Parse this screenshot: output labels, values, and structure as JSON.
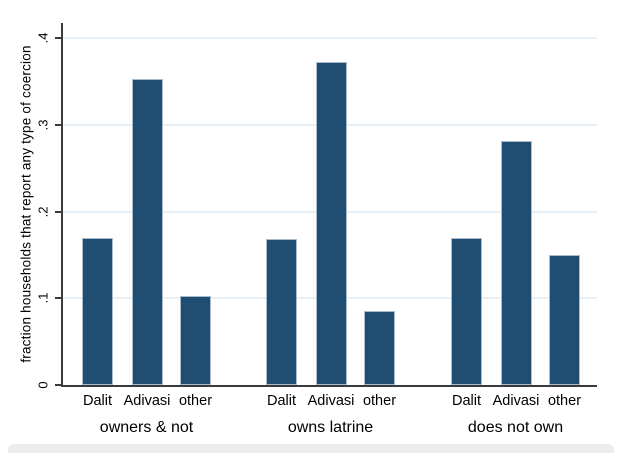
{
  "chart_data": {
    "type": "bar",
    "title": "",
    "xlabel": "",
    "ylabel": "fraction households that report any type of coercion",
    "ylim": [
      0,
      0.415
    ],
    "yticks": [
      0,
      0.1,
      0.2,
      0.3,
      0.4
    ],
    "ytick_labels": [
      "0",
      ".1",
      ".2",
      ".3",
      ".4"
    ],
    "grid": "horizontal-light",
    "legend": "none",
    "bar_color": "#1f4e72",
    "bar_edge_color": "#a9bccd",
    "grid_color": "#e8f0f5",
    "axis_color": "#3a3a3a",
    "categories_per_group": [
      "Dalit",
      "Adivasi",
      "other"
    ],
    "groups": [
      {
        "label": "owners & not",
        "values": [
          0.17,
          0.353,
          0.103
        ]
      },
      {
        "label": "owns latrine",
        "values": [
          0.168,
          0.372,
          0.085
        ]
      },
      {
        "label": "does not own",
        "values": [
          0.17,
          0.282,
          0.15
        ]
      }
    ]
  }
}
